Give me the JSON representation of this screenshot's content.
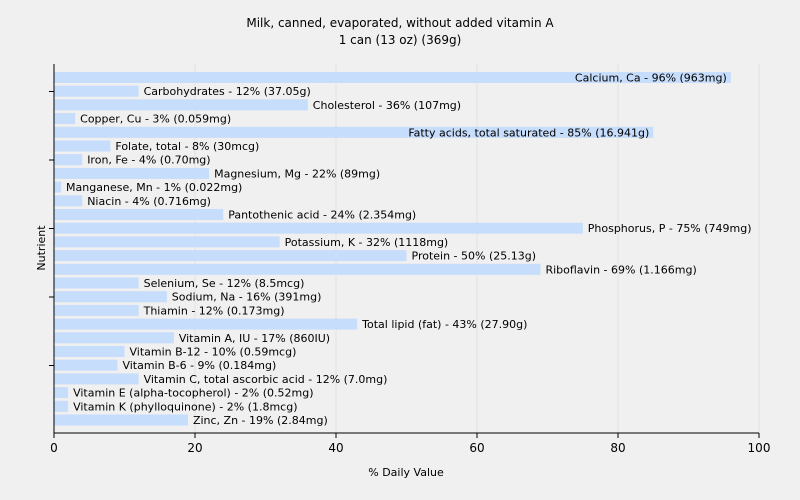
{
  "chart_data": {
    "type": "bar",
    "orientation": "horizontal",
    "title": "Milk, canned, evaporated, without added vitamin A",
    "subtitle": "1 can (13 oz) (369g)",
    "xlabel": "% Daily Value",
    "ylabel": "Nutrient",
    "xlim": [
      0,
      100
    ],
    "xticks": [
      0,
      20,
      40,
      60,
      80,
      100
    ],
    "grid": true,
    "bar_color": "#c6ddfb",
    "categories": [
      "Calcium, Ca",
      "Carbohydrates",
      "Cholesterol",
      "Copper, Cu",
      "Fatty acids, total saturated",
      "Folate, total",
      "Iron, Fe",
      "Magnesium, Mg",
      "Manganese, Mn",
      "Niacin",
      "Pantothenic acid",
      "Phosphorus, P",
      "Potassium, K",
      "Protein",
      "Riboflavin",
      "Selenium, Se",
      "Sodium, Na",
      "Thiamin",
      "Total lipid (fat)",
      "Vitamin A, IU",
      "Vitamin B-12",
      "Vitamin B-6",
      "Vitamin C, total ascorbic acid",
      "Vitamin E (alpha-tocopherol)",
      "Vitamin K (phylloquinone)",
      "Zinc, Zn"
    ],
    "values": [
      96,
      12,
      36,
      3,
      85,
      8,
      4,
      22,
      1,
      4,
      24,
      75,
      32,
      50,
      69,
      12,
      16,
      12,
      43,
      17,
      10,
      9,
      12,
      2,
      2,
      19
    ],
    "labels": [
      "Calcium, Ca - 96% (963mg)",
      "Carbohydrates - 12% (37.05g)",
      "Cholesterol - 36% (107mg)",
      "Copper, Cu - 3% (0.059mg)",
      "Fatty acids, total saturated - 85% (16.941g)",
      "Folate, total - 8% (30mcg)",
      "Iron, Fe - 4% (0.70mg)",
      "Magnesium, Mg - 22% (89mg)",
      "Manganese, Mn - 1% (0.022mg)",
      "Niacin - 4% (0.716mg)",
      "Pantothenic acid - 24% (2.354mg)",
      "Phosphorus, P - 75% (749mg)",
      "Potassium, K - 32% (1118mg)",
      "Protein - 50% (25.13g)",
      "Riboflavin - 69% (1.166mg)",
      "Selenium, Se - 12% (8.5mcg)",
      "Sodium, Na - 16% (391mg)",
      "Thiamin - 12% (0.173mg)",
      "Total lipid (fat) - 43% (27.90g)",
      "Vitamin A, IU - 17% (860IU)",
      "Vitamin B-12 - 10% (0.59mcg)",
      "Vitamin B-6 - 9% (0.184mg)",
      "Vitamin C, total ascorbic acid - 12% (7.0mg)",
      "Vitamin E (alpha-tocopherol) - 2% (0.52mg)",
      "Vitamin K (phylloquinone) - 2% (1.8mcg)",
      "Zinc, Zn - 19% (2.84mg)"
    ]
  }
}
